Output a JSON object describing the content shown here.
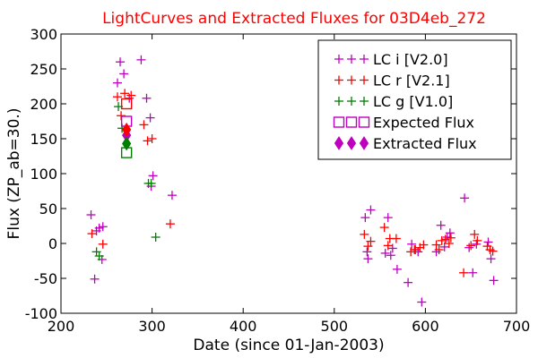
{
  "chart_data": {
    "type": "scatter",
    "title": "LightCurves and Extracted Fluxes for 03D4eb_272",
    "title_color": "#ff0000",
    "xlabel": "Date (since 01-Jan-2003)",
    "ylabel": "Flux (ZP_ab=30.)",
    "xlim": [
      200,
      700
    ],
    "ylim": [
      -100,
      300
    ],
    "xticks": [
      200,
      300,
      400,
      500,
      600,
      700
    ],
    "yticks": [
      -100,
      -50,
      0,
      50,
      100,
      150,
      200,
      250,
      300
    ],
    "grid": false,
    "legend_position": "top-right",
    "series": [
      {
        "name": "LC i [V2.0]",
        "marker": "plus",
        "color": "#bf00bf",
        "points": [
          [
            233,
            41
          ],
          [
            237,
            -51
          ],
          [
            239,
            18
          ],
          [
            242,
            22
          ],
          [
            245,
            -23
          ],
          [
            246,
            24
          ],
          [
            262,
            230
          ],
          [
            265,
            260
          ],
          [
            269,
            243
          ],
          [
            275,
            208
          ],
          [
            288,
            263
          ],
          [
            294,
            208
          ],
          [
            298,
            180
          ],
          [
            301,
            97
          ],
          [
            299,
            82
          ],
          [
            322,
            69
          ],
          [
            534,
            37
          ],
          [
            536,
            -12
          ],
          [
            537,
            -22
          ],
          [
            540,
            48
          ],
          [
            556,
            -14
          ],
          [
            559,
            37
          ],
          [
            562,
            -17
          ],
          [
            564,
            -7
          ],
          [
            569,
            -37
          ],
          [
            581,
            -56
          ],
          [
            585,
            -1
          ],
          [
            589,
            -9
          ],
          [
            592,
            -12
          ],
          [
            596,
            -84
          ],
          [
            612,
            -12
          ],
          [
            617,
            26
          ],
          [
            621,
            -5
          ],
          [
            624,
            9
          ],
          [
            627,
            15
          ],
          [
            643,
            65
          ],
          [
            648,
            -6
          ],
          [
            652,
            -42
          ],
          [
            656,
            -1
          ],
          [
            669,
            2
          ],
          [
            672,
            -22
          ],
          [
            675,
            -53
          ]
        ]
      },
      {
        "name": "LC r [V2.1]",
        "marker": "plus",
        "color": "#ff0000",
        "points": [
          [
            234,
            14
          ],
          [
            246,
            -1
          ],
          [
            262,
            210
          ],
          [
            266,
            183
          ],
          [
            270,
            215
          ],
          [
            277,
            212
          ],
          [
            291,
            170
          ],
          [
            295,
            147
          ],
          [
            300,
            150
          ],
          [
            320,
            28
          ],
          [
            533,
            13
          ],
          [
            537,
            -4
          ],
          [
            540,
            3
          ],
          [
            555,
            23
          ],
          [
            559,
            -3
          ],
          [
            561,
            7
          ],
          [
            568,
            7
          ],
          [
            584,
            -12
          ],
          [
            588,
            -9
          ],
          [
            594,
            -6
          ],
          [
            598,
            -2
          ],
          [
            612,
            -2
          ],
          [
            615,
            -9
          ],
          [
            618,
            4
          ],
          [
            622,
            6
          ],
          [
            626,
            0
          ],
          [
            628,
            8
          ],
          [
            642,
            -42
          ],
          [
            650,
            -3
          ],
          [
            654,
            13
          ],
          [
            657,
            4
          ],
          [
            668,
            -4
          ],
          [
            671,
            -9
          ],
          [
            674,
            -11
          ]
        ]
      },
      {
        "name": "LC g [V1.0]",
        "marker": "plus",
        "color": "#007f00",
        "points": [
          [
            239,
            -12
          ],
          [
            242,
            -18
          ],
          [
            263,
            196
          ],
          [
            267,
            165
          ],
          [
            296,
            86
          ],
          [
            299,
            86
          ],
          [
            304,
            9
          ]
        ]
      }
    ],
    "expected_flux": {
      "name": "Expected Flux",
      "marker": "square",
      "points": [
        {
          "x": 272,
          "y": 175,
          "color": "#bf00bf"
        },
        {
          "x": 272,
          "y": 200,
          "color": "#ff0000"
        },
        {
          "x": 272,
          "y": 130,
          "color": "#007f00"
        }
      ]
    },
    "extracted_flux": {
      "name": "Extracted Flux",
      "marker": "diamond",
      "points": [
        {
          "x": 272,
          "y": 155,
          "color": "#bf00bf"
        },
        {
          "x": 272,
          "y": 163,
          "color": "#ff0000"
        },
        {
          "x": 272,
          "y": 143,
          "color": "#007f00"
        }
      ]
    },
    "legend": [
      {
        "label": "LC i [V2.0]",
        "marker": "plus",
        "color": "#bf00bf"
      },
      {
        "label": "LC r [V2.1]",
        "marker": "plus",
        "color": "#ff0000"
      },
      {
        "label": "LC g [V1.0]",
        "marker": "plus",
        "color": "#007f00"
      },
      {
        "label": "Expected Flux",
        "marker": "square",
        "color": "#bf00bf"
      },
      {
        "label": "Extracted Flux",
        "marker": "diamond",
        "color": "#bf00bf"
      }
    ]
  }
}
